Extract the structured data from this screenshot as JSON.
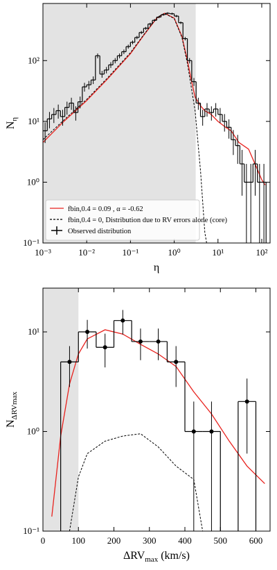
{
  "chart_data": [
    {
      "type": "histogram",
      "x_label": [
        "η"
      ],
      "y_label": [
        "N",
        "η"
      ],
      "xlog": true,
      "ylog": true,
      "xlim": [
        0.001,
        155
      ],
      "ylim": [
        0.1,
        870
      ],
      "shade": [
        0.001,
        3.1
      ],
      "xticks": [
        {
          "value": 0.001,
          "label": "10⁻³"
        },
        {
          "value": 0.01,
          "label": "10⁻²"
        },
        {
          "value": 0.1,
          "label": "10⁻¹"
        },
        {
          "value": 1,
          "label": "10⁰"
        },
        {
          "value": 10,
          "label": "10¹"
        },
        {
          "value": 100,
          "label": "10²"
        }
      ],
      "yticks": [
        {
          "value": 0.1,
          "label": "10⁻¹"
        },
        {
          "value": 1,
          "label": "10⁰"
        },
        {
          "value": 10,
          "label": "10¹"
        },
        {
          "value": 100,
          "label": "10²"
        }
      ],
      "legend": "lower left",
      "series": [
        {
          "name": "fbin,0.4 = 0.09 , α = -0.62",
          "color": "#e8211d",
          "style": "line",
          "x": [
            0.001,
            0.003,
            0.01,
            0.03,
            0.1,
            0.2,
            0.4,
            0.6,
            1,
            1.5,
            2,
            2.5,
            3,
            4,
            5,
            7,
            10,
            15,
            20,
            30,
            50,
            70,
            100,
            120
          ],
          "values": [
            4.5,
            10,
            22,
            50,
            130,
            260,
            500,
            600,
            500,
            250,
            100,
            45,
            25,
            18,
            15,
            13,
            10,
            8,
            7,
            4.5,
            3.5,
            2,
            1.1,
            0.9
          ]
        },
        {
          "name": "fbin,0.4 = 0, Distribution due to RV errors alone (core)",
          "color": "#000000",
          "style": "dashed",
          "x": [
            0.001,
            0.003,
            0.01,
            0.03,
            0.1,
            0.2,
            0.4,
            0.6,
            1,
            1.5,
            2,
            3,
            4,
            5,
            5.5
          ],
          "values": [
            5,
            10.5,
            23,
            52,
            135,
            265,
            510,
            600,
            490,
            240,
            90,
            15,
            1.5,
            0.15,
            0.1
          ]
        },
        {
          "name": "Observed distribution",
          "color": "#000000",
          "style": "step",
          "marker": false,
          "x": [
            0.00112,
            0.00141,
            0.00178,
            0.00224,
            0.00282,
            0.00355,
            0.00447,
            0.00562,
            0.00708,
            0.00891,
            0.0112,
            0.0141,
            0.0178,
            0.0224,
            0.0282,
            0.0355,
            0.0447,
            0.0562,
            0.0708,
            0.0891,
            0.112,
            0.141,
            0.178,
            0.224,
            0.282,
            0.355,
            0.447,
            0.562,
            0.708,
            0.891,
            1.12,
            1.41,
            1.78,
            2.24,
            2.82,
            3.55,
            4.47,
            5.62,
            7.08,
            8.91,
            11.2,
            14.1,
            17.8,
            22.4,
            28.2,
            35.5,
            44.7,
            56.2,
            70.8,
            89.1,
            112
          ],
          "values": [
            7,
            11,
            13,
            15,
            12,
            17,
            20,
            14,
            21,
            37,
            40,
            48,
            120,
            60,
            70,
            85,
            100,
            120,
            140,
            170,
            200,
            240,
            290,
            340,
            400,
            460,
            520,
            570,
            600,
            590,
            540,
            420,
            230,
            100,
            45,
            20,
            12,
            16,
            14,
            16,
            13,
            10,
            8,
            5,
            4,
            2,
            1,
            1,
            2,
            1,
            1
          ],
          "errors": [
            2.6,
            3.3,
            3.6,
            3.9,
            3.5,
            4.1,
            4.5,
            3.7,
            4.6,
            6.1,
            6.3,
            6.9,
            11,
            7.7,
            8.4,
            9.2,
            10,
            11,
            12,
            13,
            14,
            15,
            17,
            18,
            20,
            21,
            23,
            24,
            24,
            24,
            23,
            20,
            15,
            10,
            6.7,
            4.5,
            3.5,
            4,
            3.7,
            4,
            3.6,
            3.2,
            2.8,
            2.2,
            2,
            1.4,
            1,
            1,
            1.4,
            1,
            1
          ]
        }
      ]
    },
    {
      "type": "histogram",
      "x_label": [
        "ΔRV",
        "max",
        " (km/s)"
      ],
      "y_label": [
        "N",
        "ΔRVmax"
      ],
      "xlog": false,
      "ylog": true,
      "xlim": [
        0,
        640
      ],
      "ylim": [
        0.1,
        27.5
      ],
      "shade": [
        0,
        100
      ],
      "xticks": [
        0,
        100,
        200,
        300,
        400,
        500,
        600
      ],
      "yticks": [
        {
          "value": 0.1,
          "label": "10⁻¹"
        },
        {
          "value": 1,
          "label": "10⁰"
        },
        {
          "value": 10,
          "label": "10¹"
        }
      ],
      "series": [
        {
          "color": "#e8211d",
          "style": "line",
          "x": [
            25,
            50,
            75,
            100,
            125,
            175,
            225,
            275,
            325,
            375,
            425,
            475,
            525,
            575,
            625
          ],
          "values": [
            0.14,
            0.9,
            3,
            6,
            8.5,
            10.5,
            9.5,
            7.5,
            6,
            4.5,
            2.5,
            1.5,
            0.8,
            0.45,
            0.3
          ]
        },
        {
          "color": "#000000",
          "style": "dashed",
          "x": [
            75,
            100,
            125,
            175,
            225,
            275,
            325,
            375,
            425,
            450
          ],
          "values": [
            0.1,
            0.35,
            0.6,
            0.8,
            0.9,
            0.95,
            0.7,
            0.45,
            0.33,
            0.1
          ]
        },
        {
          "color": "#000000",
          "style": "step",
          "marker": true,
          "bins": [
            50,
            100,
            150,
            200,
            250,
            300,
            350,
            400,
            450,
            500,
            550,
            600
          ],
          "values": [
            5,
            10,
            7,
            13,
            8,
            8,
            5,
            1,
            1,
            0,
            2
          ],
          "errors": [
            2.2,
            3.2,
            2.6,
            3.6,
            2.8,
            2.8,
            2.2,
            1,
            1,
            null,
            1.4
          ]
        }
      ]
    }
  ]
}
